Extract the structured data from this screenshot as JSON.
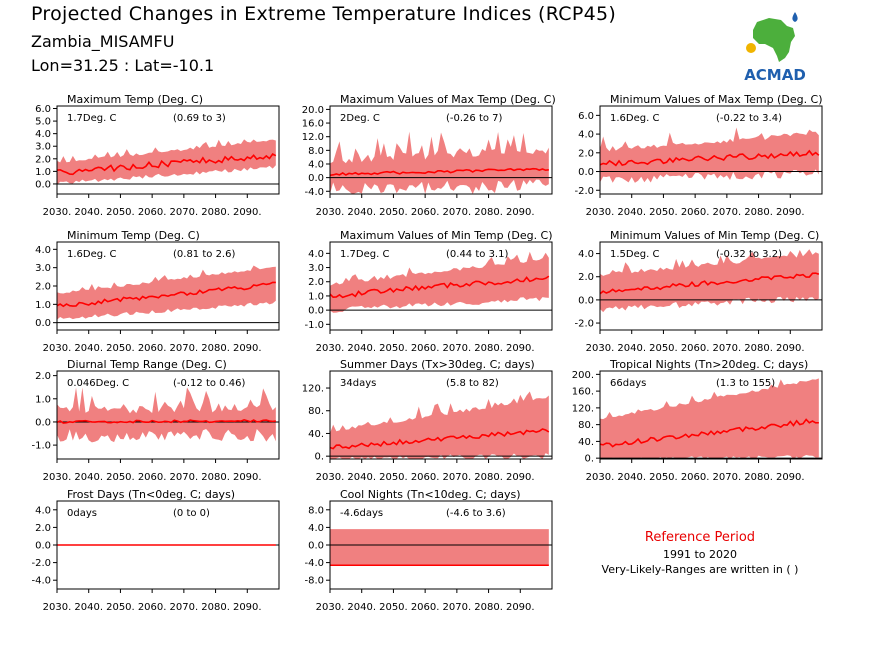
{
  "header": {
    "title": "Projected Changes in Extreme Temperature Indices (RCP45)",
    "station": "Zambia_MISAMFU",
    "coords": "Lon=31.25 : Lat=-10.1"
  },
  "logo": {
    "text": "ACMAD",
    "colors": {
      "africa": "#4caf3c",
      "text": "#1f5fae",
      "accent": "#f0b400"
    }
  },
  "reference": {
    "title": "Reference Period",
    "years": "1991 to 2020",
    "note": "Very-Likely-Ranges are written in ( )"
  },
  "colors": {
    "band": "#f08080",
    "median": "#ff0000",
    "zero": "#000000"
  },
  "chart_data": [
    {
      "type": "area",
      "title": "Maximum Temp (Deg. C)",
      "value_label": "1.7Deg. C",
      "range_label": "(0.69 to 3)",
      "x": [
        2030,
        2099
      ],
      "xticks": [
        "2030.",
        "2040.",
        "2050.",
        "2060.",
        "2070.",
        "2080.",
        "2090."
      ],
      "ylim": [
        -0.8,
        6.2
      ],
      "yticks": [
        0,
        1,
        2,
        3,
        4,
        5,
        6
      ],
      "ytick_labels": [
        "0.0",
        "1.0",
        "2.0",
        "3.0",
        "4.0",
        "5.0",
        "6.0"
      ],
      "median_start": 0.9,
      "median_end": 2.3,
      "band_low_start": 0.2,
      "band_low_end": 1.5,
      "band_high_start": 1.6,
      "band_high_end": 3.4,
      "spike": 0.6,
      "median_noise": 0.25
    },
    {
      "type": "area",
      "title": "Maximum Values of Max Temp (Deg. C)",
      "value_label": "2Deg. C",
      "range_label": "(-0.26 to 7)",
      "x": [
        2030,
        2099
      ],
      "xticks": [
        "2030.",
        "2040.",
        "2050.",
        "2060.",
        "2070.",
        "2080.",
        "2090."
      ],
      "ylim": [
        -4.8,
        21
      ],
      "yticks": [
        -4,
        0,
        4,
        8,
        12,
        16,
        20
      ],
      "ytick_labels": [
        "-4.0",
        "0.0",
        "4.0",
        "8.0",
        "12.0",
        "16.0",
        "20.0"
      ],
      "median_start": 1.0,
      "median_end": 2.5,
      "band_low_start": -1.0,
      "band_low_end": -0.3,
      "band_high_start": 4.0,
      "band_high_end": 7.0,
      "spike": 9.0,
      "median_noise": 0.4
    },
    {
      "type": "area",
      "title": "Minimum Values of Max Temp (Deg. C)",
      "value_label": "1.6Deg. C",
      "range_label": "(-0.22 to 3.4)",
      "x": [
        2030,
        2099
      ],
      "xticks": [
        "2030.",
        "2040.",
        "2050.",
        "2060.",
        "2070.",
        "2080.",
        "2090."
      ],
      "ylim": [
        -2.4,
        7
      ],
      "yticks": [
        -2,
        0,
        2,
        4,
        6
      ],
      "ytick_labels": [
        "-2.0",
        "0.0",
        "2.0",
        "4.0",
        "6.0"
      ],
      "median_start": 0.8,
      "median_end": 2.0,
      "band_low_start": -0.5,
      "band_low_end": 0.3,
      "band_high_start": 2.0,
      "band_high_end": 3.8,
      "spike": 1.8,
      "median_noise": 0.3
    },
    {
      "type": "area",
      "title": "Minimum Temp (Deg. C)",
      "value_label": "1.6Deg. C",
      "range_label": "(0.81 to 2.6)",
      "x": [
        2030,
        2099
      ],
      "xticks": [
        "2030.",
        "2040.",
        "2050.",
        "2060.",
        "2070.",
        "2080.",
        "2090."
      ],
      "ylim": [
        -0.4,
        4.4
      ],
      "yticks": [
        0,
        1,
        2,
        3,
        4
      ],
      "ytick_labels": [
        "0.0",
        "1.0",
        "2.0",
        "3.0",
        "4.0"
      ],
      "median_start": 0.9,
      "median_end": 2.1,
      "band_low_start": 0.3,
      "band_low_end": 1.2,
      "band_high_start": 1.5,
      "band_high_end": 3.0,
      "spike": 0.4,
      "median_noise": 0.12
    },
    {
      "type": "area",
      "title": "Maximum Values of Min Temp (Deg. C)",
      "value_label": "1.7Deg. C",
      "range_label": "(0.44 to 3.1)",
      "x": [
        2030,
        2099
      ],
      "xticks": [
        "2030.",
        "2040.",
        "2050.",
        "2060.",
        "2070.",
        "2080.",
        "2090."
      ],
      "ylim": [
        -1.4,
        4.8
      ],
      "yticks": [
        -1,
        0,
        1,
        2,
        3,
        4
      ],
      "ytick_labels": [
        "-1.0",
        "0.0",
        "1.0",
        "2.0",
        "3.0",
        "4.0"
      ],
      "median_start": 1.0,
      "median_end": 2.3,
      "band_low_start": 0.2,
      "band_low_end": 1.0,
      "band_high_start": 1.7,
      "band_high_end": 3.5,
      "spike": 0.8,
      "median_noise": 0.2
    },
    {
      "type": "area",
      "title": "Minimum Values of Min Temp (Deg. C)",
      "value_label": "1.5Deg. C",
      "range_label": "(-0.32 to 3.2)",
      "x": [
        2030,
        2099
      ],
      "xticks": [
        "2030.",
        "2040.",
        "2050.",
        "2060.",
        "2070.",
        "2080.",
        "2090."
      ],
      "ylim": [
        -2.6,
        5
      ],
      "yticks": [
        -2,
        0,
        2,
        4
      ],
      "ytick_labels": [
        "-2.0",
        "0.0",
        "2.0",
        "4.0"
      ],
      "median_start": 0.7,
      "median_end": 2.2,
      "band_low_start": -0.5,
      "band_low_end": 0.5,
      "band_high_start": 2.0,
      "band_high_end": 3.8,
      "spike": 1.2,
      "median_noise": 0.2
    },
    {
      "type": "area",
      "title": "Diurnal Temp Range (Deg. C)",
      "value_label": "0.046Deg. C",
      "range_label": "(-0.12 to 0.46)",
      "x": [
        2030,
        2099
      ],
      "xticks": [
        "2030.",
        "2040.",
        "2050.",
        "2060.",
        "2070.",
        "2080.",
        "2090."
      ],
      "ylim": [
        -1.6,
        2.2
      ],
      "yticks": [
        -1,
        0,
        1,
        2
      ],
      "ytick_labels": [
        "-1.0",
        "0.0",
        "1.0",
        "2.0"
      ],
      "median_start": 0.0,
      "median_end": 0.05,
      "band_low_start": -0.3,
      "band_low_end": -0.25,
      "band_high_start": 0.3,
      "band_high_end": 0.45,
      "spike": 1.2,
      "median_noise": 0.05
    },
    {
      "type": "area",
      "title": "Summer Days (Tx>30deg. C; days)",
      "value_label": "34days",
      "range_label": "(5.8 to 82)",
      "x": [
        2030,
        2099
      ],
      "xticks": [
        "2030.",
        "2040.",
        "2050.",
        "2060.",
        "2070.",
        "2080.",
        "2090."
      ],
      "ylim": [
        -5,
        150
      ],
      "yticks": [
        0,
        40,
        80,
        120
      ],
      "ytick_labels": [
        "0.",
        "40.",
        "80.",
        "120."
      ],
      "median_start": 15,
      "median_end": 45,
      "band_low_start": 0,
      "band_low_end": 6,
      "band_high_start": 40,
      "band_high_end": 100,
      "spike": 25,
      "median_noise": 4
    },
    {
      "type": "area",
      "title": "Tropical Nights (Tn>20deg. C; days)",
      "value_label": "66days",
      "range_label": "(1.3 to 155)",
      "x": [
        2030,
        2099
      ],
      "xticks": [
        "2030.",
        "2040.",
        "2050.",
        "2060.",
        "2070.",
        "2080.",
        "2090."
      ],
      "ylim": [
        -2,
        208
      ],
      "yticks": [
        0,
        40,
        80,
        120,
        160,
        200
      ],
      "ytick_labels": [
        "0.",
        "40.",
        "80.",
        "120.",
        "160.",
        "200."
      ],
      "median_start": 30,
      "median_end": 90,
      "band_low_start": 2,
      "band_low_end": 8,
      "band_high_start": 90,
      "band_high_end": 185,
      "spike": 20,
      "median_noise": 6
    },
    {
      "type": "area",
      "title": "Frost Days (Tn<0deg. C; days)",
      "value_label": "0days",
      "range_label": "(0 to 0)",
      "x": [
        2030,
        2099
      ],
      "xticks": [
        "2030.",
        "2040.",
        "2050.",
        "2060.",
        "2070.",
        "2080.",
        "2090."
      ],
      "ylim": [
        -5,
        5
      ],
      "yticks": [
        -4,
        -2,
        0,
        2,
        4
      ],
      "ytick_labels": [
        "-4.0",
        "-2.0",
        "0.0",
        "2.0",
        "4.0"
      ],
      "median_start": 0,
      "median_end": 0,
      "band_low_start": 0,
      "band_low_end": 0,
      "band_high_start": 0,
      "band_high_end": 0,
      "spike": 0,
      "median_noise": 0
    },
    {
      "type": "area",
      "title": "Cool Nights (Tn<10deg. C; days)",
      "value_label": "-4.6days",
      "range_label": "(-4.6 to 3.6)",
      "x": [
        2030,
        2099
      ],
      "xticks": [
        "2030.",
        "2040.",
        "2050.",
        "2060.",
        "2070.",
        "2080.",
        "2090."
      ],
      "ylim": [
        -10,
        10
      ],
      "yticks": [
        -8,
        -4,
        0,
        4,
        8
      ],
      "ytick_labels": [
        "-8.0",
        "-4.0",
        "0.0",
        "4.0",
        "8.0"
      ],
      "median_start": -4.6,
      "median_end": -4.6,
      "band_low_start": -4.6,
      "band_low_end": -4.6,
      "band_high_start": 3.6,
      "band_high_end": 3.6,
      "spike": 0,
      "median_noise": 0
    }
  ]
}
